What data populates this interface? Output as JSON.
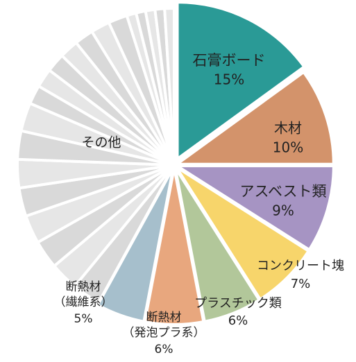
{
  "chart_data": {
    "type": "pie",
    "categories": [
      "石膏ボード",
      "木材",
      "アスベスト類",
      "コンクリート塊",
      "プラスチック類",
      "断熱材（発泡プラ系）",
      "断熱材（繊維系）",
      "その他"
    ],
    "values": [
      15,
      10,
      9,
      7,
      6,
      6,
      5,
      42
    ],
    "value_labels": [
      "15%",
      "10%",
      "9%",
      "7%",
      "6%",
      "6%",
      "5%",
      ""
    ],
    "label_lines": [
      [
        "石膏ボード",
        "15%"
      ],
      [
        "木材",
        "10%"
      ],
      [
        "アスベスト類",
        "9%"
      ],
      [
        "コンクリート塊",
        "7%"
      ],
      [
        "プラスチック類",
        "6%"
      ],
      [
        "断熱材",
        "（発泡プラ系）",
        "6%"
      ],
      [
        "断熱材",
        "（繊維系）",
        "5%"
      ],
      [
        "その他"
      ]
    ],
    "colors": [
      "#2a9a96",
      "#d3936b",
      "#a694c3",
      "#f7d56b",
      "#b2c79a",
      "#e8a77e",
      "#a6bfcc",
      "#d9d9d9"
    ],
    "other_subslices": [
      3,
      3,
      3,
      3,
      3,
      3,
      3,
      3,
      2,
      2,
      2,
      2,
      2,
      2,
      2,
      1,
      1,
      1,
      1,
      1
    ],
    "other_colors": [
      "#d9d9d9",
      "#e6e6e6"
    ],
    "start_angle_deg": 0,
    "direction": "clockwise",
    "legend": "none",
    "title": ""
  }
}
